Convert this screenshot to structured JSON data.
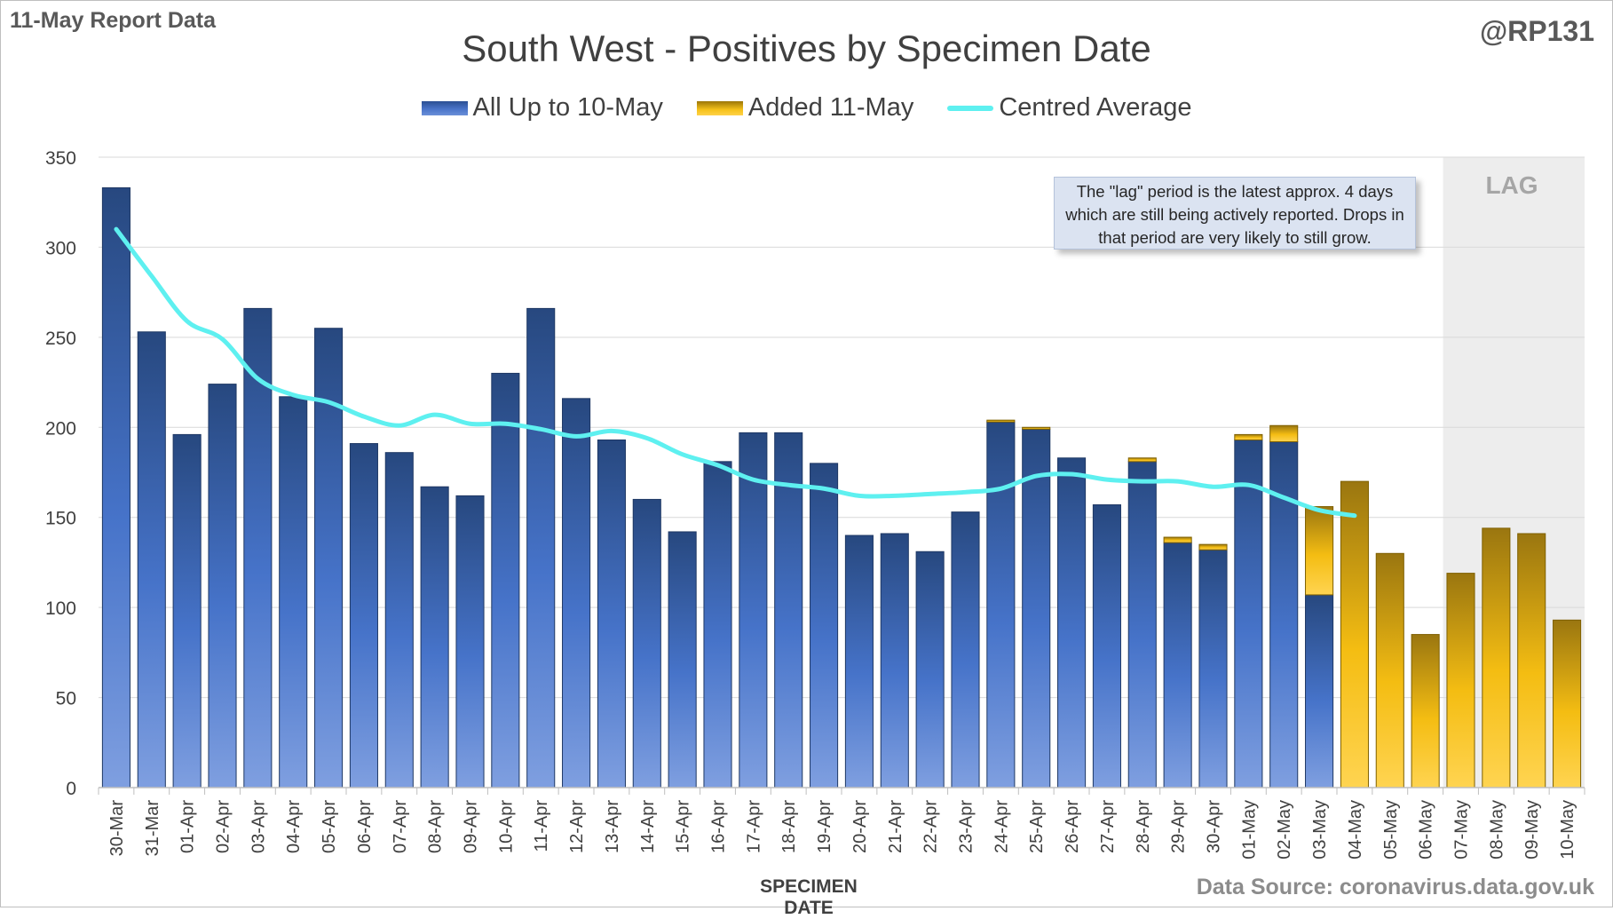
{
  "header": {
    "report_label": "11-May Report Data",
    "handle": "@RP131",
    "source": "Data Source: coronavirus.data.gov.uk"
  },
  "annotations": {
    "lag_note": "The \"lag\" period is the latest approx. 4 days which are still being actively reported. Drops in that period are very likely to still grow.",
    "lag_label": "LAG"
  },
  "colors": {
    "blue_series": "#3a63b8",
    "gold_series": "#f2b705",
    "average_line": "#5ef0f0",
    "lag_shade": "#ededed"
  },
  "chart_data": {
    "type": "bar",
    "stacked": true,
    "title": "South West - Positives by Specimen Date",
    "xlabel": "SPECIMEN DATE",
    "ylabel": "",
    "ylim": [
      0,
      350
    ],
    "yticks": [
      0,
      50,
      100,
      150,
      200,
      250,
      300,
      350
    ],
    "grid": true,
    "legend_position": "top",
    "lag_categories": [
      "07-May",
      "08-May",
      "09-May",
      "10-May"
    ],
    "categories": [
      "30-Mar",
      "31-Mar",
      "01-Apr",
      "02-Apr",
      "03-Apr",
      "04-Apr",
      "05-Apr",
      "06-Apr",
      "07-Apr",
      "08-Apr",
      "09-Apr",
      "10-Apr",
      "11-Apr",
      "12-Apr",
      "13-Apr",
      "14-Apr",
      "15-Apr",
      "16-Apr",
      "17-Apr",
      "18-Apr",
      "19-Apr",
      "20-Apr",
      "21-Apr",
      "22-Apr",
      "23-Apr",
      "24-Apr",
      "25-Apr",
      "26-Apr",
      "27-Apr",
      "28-Apr",
      "29-Apr",
      "30-Apr",
      "01-May",
      "02-May",
      "03-May",
      "04-May",
      "05-May",
      "06-May",
      "07-May",
      "08-May",
      "09-May",
      "10-May"
    ],
    "series": [
      {
        "name": "All Up to 10-May",
        "kind": "bar",
        "values": [
          333,
          253,
          196,
          224,
          266,
          217,
          255,
          191,
          186,
          167,
          162,
          230,
          266,
          216,
          193,
          160,
          142,
          181,
          197,
          197,
          180,
          140,
          141,
          131,
          153,
          203,
          199,
          183,
          157,
          181,
          136,
          132,
          193,
          192,
          107,
          0,
          0,
          0,
          0,
          0,
          0,
          0
        ]
      },
      {
        "name": "Added 11-May",
        "kind": "bar",
        "values": [
          0,
          0,
          0,
          0,
          0,
          0,
          0,
          0,
          0,
          0,
          0,
          0,
          0,
          0,
          0,
          0,
          0,
          0,
          0,
          0,
          0,
          0,
          0,
          0,
          0,
          1,
          1,
          0,
          0,
          2,
          3,
          3,
          3,
          9,
          49,
          170,
          130,
          85,
          119,
          144,
          141,
          93
        ]
      },
      {
        "name": "Centred Average",
        "kind": "line",
        "values": [
          310,
          284,
          259,
          249,
          227,
          218,
          214,
          206,
          201,
          207,
          202,
          202,
          199,
          195,
          198,
          194,
          185,
          179,
          171,
          168,
          166,
          162,
          162,
          163,
          164,
          166,
          173,
          174,
          171,
          170,
          170,
          167,
          168,
          161,
          154,
          151,
          null,
          null,
          null,
          null,
          null,
          null
        ]
      }
    ]
  }
}
